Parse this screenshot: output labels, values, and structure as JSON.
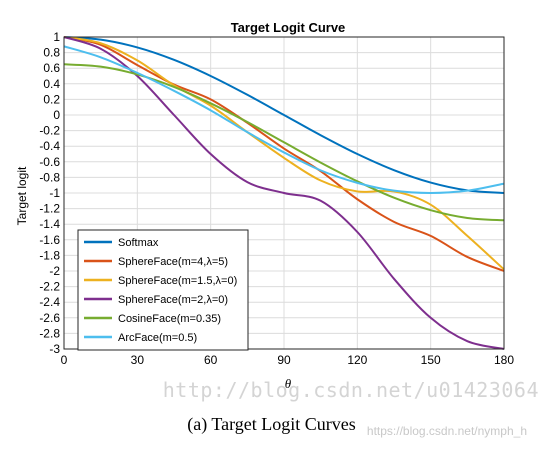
{
  "chart_data": {
    "type": "line",
    "title": "Target Logit Curve",
    "xlabel": "θ",
    "ylabel": "Target logit",
    "xlim": [
      0,
      180
    ],
    "ylim": [
      -3,
      1
    ],
    "xticks": [
      0,
      30,
      60,
      90,
      120,
      150,
      180
    ],
    "yticks": [
      1,
      0.8,
      0.6,
      0.4,
      0.2,
      0,
      -0.2,
      -0.4,
      -0.6,
      -0.8,
      -1,
      -1.2,
      -1.4,
      -1.6,
      -1.8,
      -2,
      -2.2,
      -2.4,
      -2.6,
      -2.8,
      -3
    ],
    "grid": true,
    "legend_position": "bottom-left",
    "series": [
      {
        "name": "Softmax",
        "color": "#0072bd",
        "x": [
          0,
          15,
          30,
          45,
          60,
          75,
          90,
          105,
          120,
          135,
          150,
          165,
          180
        ],
        "y": [
          1,
          0.966,
          0.866,
          0.707,
          0.5,
          0.259,
          0,
          -0.259,
          -0.5,
          -0.707,
          -0.866,
          -0.966,
          -1
        ]
      },
      {
        "name": "SphereFace(m=4,λ=5)",
        "color": "#d95319",
        "x": [
          0,
          15,
          30,
          45,
          60,
          75,
          90,
          105,
          120,
          135,
          150,
          165,
          180
        ],
        "y": [
          1,
          0.9,
          0.64,
          0.39,
          0.2,
          -0.1,
          -0.43,
          -0.72,
          -1.08,
          -1.37,
          -1.55,
          -1.82,
          -2
        ]
      },
      {
        "name": "SphereFace(m=1.5,λ=0)",
        "color": "#edb120",
        "x": [
          0,
          15,
          30,
          45,
          60,
          75,
          90,
          105,
          120,
          135,
          150,
          165,
          180
        ],
        "y": [
          1,
          0.92,
          0.7,
          0.38,
          0.12,
          -0.22,
          -0.55,
          -0.84,
          -0.98,
          -0.98,
          -1.15,
          -1.55,
          -1.98
        ]
      },
      {
        "name": "SphereFace(m=2,λ=0)",
        "color": "#7e2f8e",
        "x": [
          0,
          15,
          30,
          45,
          60,
          75,
          90,
          105,
          120,
          135,
          150,
          165,
          180
        ],
        "y": [
          1,
          0.85,
          0.5,
          0,
          -0.5,
          -0.86,
          -1,
          -1.1,
          -1.5,
          -2.1,
          -2.6,
          -2.9,
          -3
        ]
      },
      {
        "name": "CosineFace(m=0.35)",
        "color": "#77ac30",
        "x": [
          0,
          15,
          30,
          45,
          60,
          75,
          90,
          105,
          120,
          135,
          150,
          165,
          180
        ],
        "y": [
          0.65,
          0.62,
          0.52,
          0.36,
          0.15,
          -0.09,
          -0.35,
          -0.61,
          -0.85,
          -1.06,
          -1.22,
          -1.32,
          -1.35
        ]
      },
      {
        "name": "ArcFace(m=0.5)",
        "color": "#4dbeee",
        "x": [
          0,
          15,
          30,
          45,
          60,
          75,
          90,
          105,
          120,
          135,
          150,
          165,
          180
        ],
        "y": [
          0.88,
          0.74,
          0.54,
          0.31,
          0.06,
          -0.22,
          -0.48,
          -0.71,
          -0.87,
          -0.97,
          -1,
          -0.97,
          -0.88
        ]
      }
    ]
  },
  "caption": "(a)  Target Logit Curves",
  "watermark": "http://blog.csdn.net/u01423064",
  "watermark_sub": "https://blog.csdn.net/nymph_h"
}
